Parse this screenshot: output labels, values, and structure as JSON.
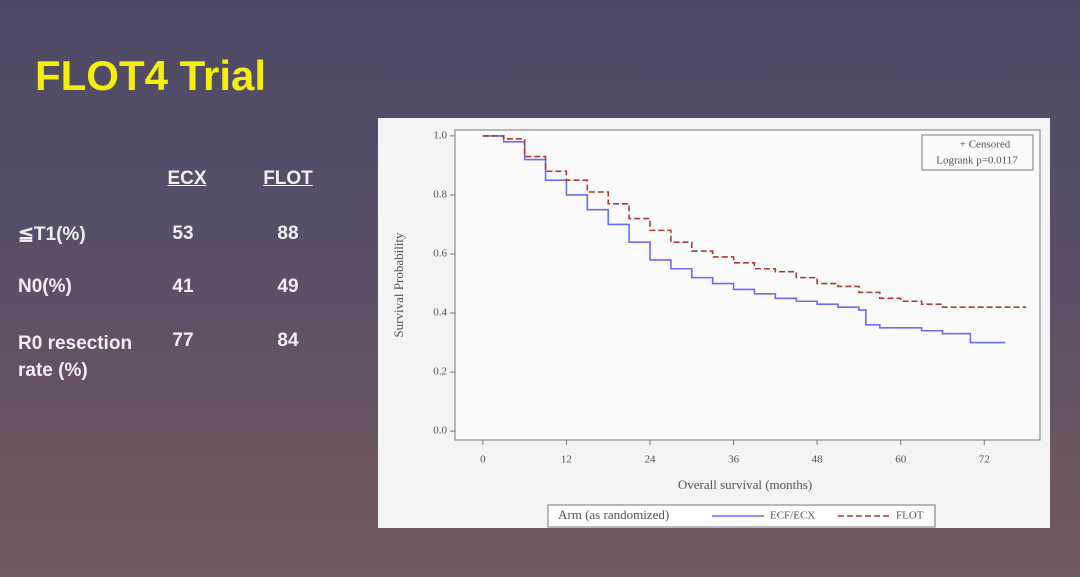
{
  "title": "FLOT4 Trial",
  "table": {
    "header": [
      "ECX",
      "FLOT"
    ],
    "rows": [
      [
        "≦T1(%)",
        53,
        88
      ],
      [
        "N0(%)",
        41,
        49
      ],
      [
        "R0 resection rate (%)",
        77,
        84
      ]
    ]
  },
  "chart_data": {
    "type": "line",
    "step": true,
    "x_label": "Overall survival (months)",
    "y_label": "Survival Probability",
    "legend_title": "Arm (as randomized)",
    "annotations": [
      "+ Censored",
      "Logrank p=0.0117"
    ],
    "xlim": [
      -4,
      80
    ],
    "ylim": [
      -0.03,
      1.02
    ],
    "xticks": [
      0,
      12,
      24,
      36,
      48,
      60,
      72
    ],
    "yticks": [
      {
        "value": 0,
        "label": "0.0"
      },
      0.2,
      0.4,
      0.6,
      0.8,
      {
        "value": 1,
        "label": "1.0"
      }
    ],
    "series": [
      {
        "name": "ECF/ECX",
        "color": "#6b6bff",
        "x": [
          0,
          3,
          6,
          9,
          12,
          15,
          18,
          21,
          24,
          27,
          30,
          33,
          36,
          39,
          42,
          45,
          48,
          51,
          54,
          55,
          57,
          60,
          63,
          66,
          69,
          70,
          72,
          75
        ],
        "values": [
          1.0,
          0.98,
          0.92,
          0.85,
          0.8,
          0.75,
          0.7,
          0.64,
          0.58,
          0.55,
          0.52,
          0.5,
          0.48,
          0.465,
          0.45,
          0.44,
          0.43,
          0.42,
          0.41,
          0.36,
          0.35,
          0.35,
          0.34,
          0.33,
          0.33,
          0.3,
          0.3,
          0.3
        ]
      },
      {
        "name": "FLOT",
        "color": "#b03a2e",
        "x": [
          0,
          3,
          6,
          9,
          12,
          15,
          18,
          21,
          24,
          27,
          30,
          33,
          36,
          39,
          42,
          45,
          48,
          51,
          54,
          57,
          60,
          63,
          66,
          69,
          72,
          75,
          78
        ],
        "values": [
          1.0,
          0.99,
          0.93,
          0.88,
          0.85,
          0.81,
          0.77,
          0.72,
          0.68,
          0.64,
          0.61,
          0.59,
          0.57,
          0.55,
          0.54,
          0.52,
          0.5,
          0.49,
          0.47,
          0.45,
          0.44,
          0.43,
          0.42,
          0.42,
          0.42,
          0.42,
          0.42
        ]
      }
    ]
  }
}
